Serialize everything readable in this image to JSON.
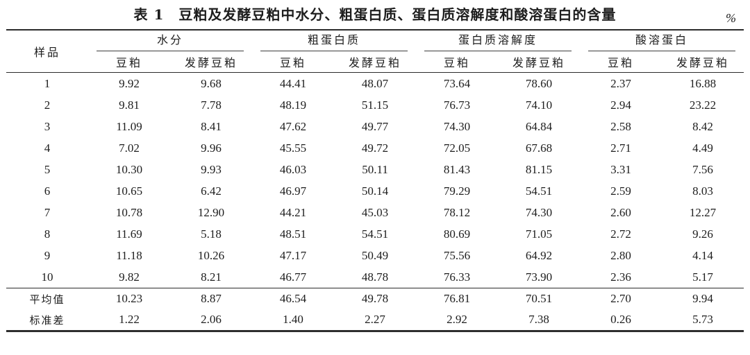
{
  "table": {
    "title": "表 1　豆粕及发酵豆粕中水分、粗蛋白质、蛋白质溶解度和酸溶蛋白的含量",
    "unit": "%",
    "sample_header": "样品",
    "groups": [
      {
        "label": "水分",
        "sub": [
          "豆粕",
          "发酵豆粕"
        ]
      },
      {
        "label": "粗蛋白质",
        "sub": [
          "豆粕",
          "发酵豆粕"
        ]
      },
      {
        "label": "蛋白质溶解度",
        "sub": [
          "豆粕",
          "发酵豆粕"
        ]
      },
      {
        "label": "酸溶蛋白",
        "sub": [
          "豆粕",
          "发酵豆粕"
        ]
      }
    ],
    "rows": [
      {
        "sample": "1",
        "values": [
          "9.92",
          "9.68",
          "44.41",
          "48.07",
          "73.64",
          "78.60",
          "2.37",
          "16.88"
        ]
      },
      {
        "sample": "2",
        "values": [
          "9.81",
          "7.78",
          "48.19",
          "51.15",
          "76.73",
          "74.10",
          "2.94",
          "23.22"
        ]
      },
      {
        "sample": "3",
        "values": [
          "11.09",
          "8.41",
          "47.62",
          "49.77",
          "74.30",
          "64.84",
          "2.58",
          "8.42"
        ]
      },
      {
        "sample": "4",
        "values": [
          "7.02",
          "9.96",
          "45.55",
          "49.72",
          "72.05",
          "67.68",
          "2.71",
          "4.49"
        ]
      },
      {
        "sample": "5",
        "values": [
          "10.30",
          "9.93",
          "46.03",
          "50.11",
          "81.43",
          "81.15",
          "3.31",
          "7.56"
        ]
      },
      {
        "sample": "6",
        "values": [
          "10.65",
          "6.42",
          "46.97",
          "50.14",
          "79.29",
          "54.51",
          "2.59",
          "8.03"
        ]
      },
      {
        "sample": "7",
        "values": [
          "10.78",
          "12.90",
          "44.21",
          "45.03",
          "78.12",
          "74.30",
          "2.60",
          "12.27"
        ]
      },
      {
        "sample": "8",
        "values": [
          "11.69",
          "5.18",
          "48.51",
          "54.51",
          "80.69",
          "71.05",
          "2.72",
          "9.26"
        ]
      },
      {
        "sample": "9",
        "values": [
          "11.18",
          "10.26",
          "47.17",
          "50.49",
          "75.56",
          "64.92",
          "2.80",
          "4.14"
        ]
      },
      {
        "sample": "10",
        "values": [
          "9.82",
          "8.21",
          "46.77",
          "48.78",
          "76.33",
          "73.90",
          "2.36",
          "5.17"
        ]
      }
    ],
    "summary_rows": [
      {
        "sample": "平均值",
        "values": [
          "10.23",
          "8.87",
          "46.54",
          "49.78",
          "76.81",
          "70.51",
          "2.70",
          "9.94"
        ]
      },
      {
        "sample": "标准差",
        "values": [
          "1.22",
          "2.06",
          "1.40",
          "2.27",
          "2.92",
          "7.38",
          "0.26",
          "5.73"
        ]
      }
    ]
  }
}
